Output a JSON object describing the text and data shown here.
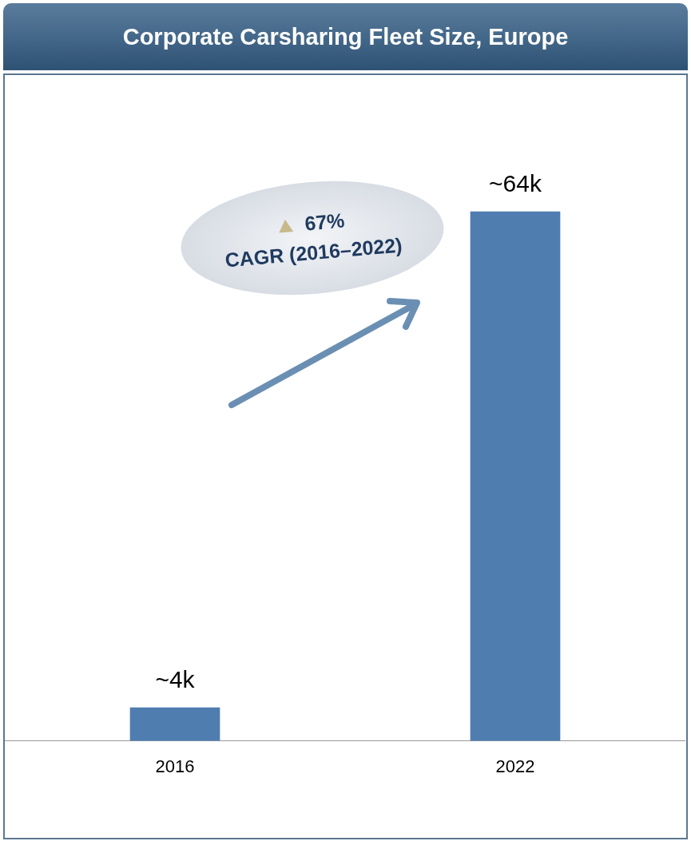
{
  "chart_data": {
    "type": "bar",
    "title": "Corporate Carsharing Fleet Size, Europe",
    "categories": [
      "2016",
      "2022"
    ],
    "values": [
      4000,
      64000
    ],
    "value_labels": [
      "~4k",
      "~64k"
    ],
    "tick_labels": "x",
    "color": "#4f7db0",
    "grid": false,
    "legend": false,
    "annotations": [
      "67%",
      "CAGR (2016–2022)"
    ]
  }
}
